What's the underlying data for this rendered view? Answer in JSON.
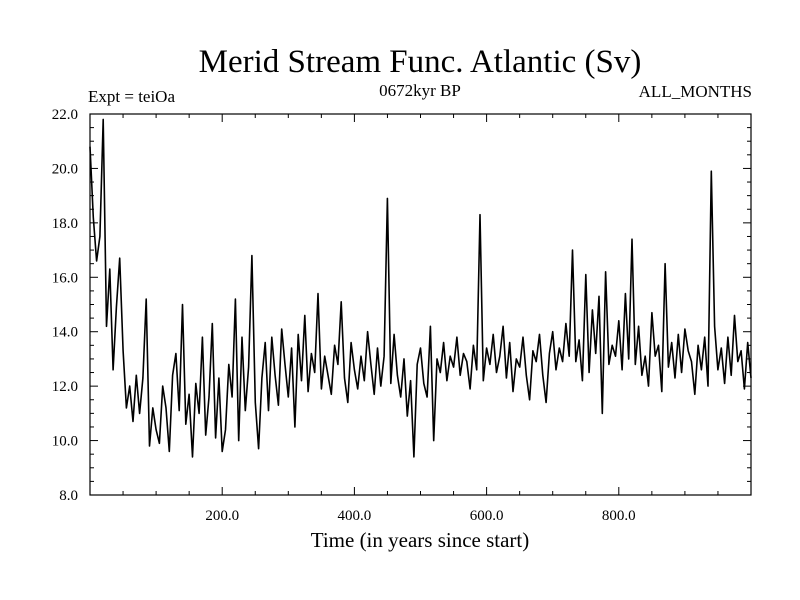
{
  "chart_data": {
    "type": "line",
    "title": "Merid Stream Func. Atlantic (Sv)",
    "subtitle_left": "Expt = teiOa",
    "subtitle_center": "0672kyr BP",
    "subtitle_right": "ALL_MONTHS",
    "xlabel": "Time (in years since start)",
    "ylabel": "",
    "xlim": [
      0,
      1000
    ],
    "ylim": [
      8.0,
      22.0
    ],
    "x_ticks": [
      200,
      400,
      600,
      800
    ],
    "x_tick_labels": [
      "200.0",
      "400.0",
      "600.0",
      "800.0"
    ],
    "y_ticks": [
      8,
      10,
      12,
      14,
      16,
      18,
      20,
      22
    ],
    "y_tick_labels": [
      "8.0",
      "10.0",
      "12.0",
      "14.0",
      "16.0",
      "18.0",
      "20.0",
      "22.0"
    ],
    "grid": false,
    "series": [
      {
        "name": "Merid Stream Func. Atlantic",
        "x": [
          0,
          5,
          10,
          15,
          20,
          25,
          30,
          35,
          40,
          45,
          50,
          55,
          60,
          65,
          70,
          75,
          80,
          85,
          90,
          95,
          100,
          105,
          110,
          115,
          120,
          125,
          130,
          135,
          140,
          145,
          150,
          155,
          160,
          165,
          170,
          175,
          180,
          185,
          190,
          195,
          200,
          205,
          210,
          215,
          220,
          225,
          230,
          235,
          240,
          245,
          250,
          255,
          260,
          265,
          270,
          275,
          280,
          285,
          290,
          295,
          300,
          305,
          310,
          315,
          320,
          325,
          330,
          335,
          340,
          345,
          350,
          355,
          360,
          365,
          370,
          375,
          380,
          385,
          390,
          395,
          400,
          405,
          410,
          415,
          420,
          425,
          430,
          435,
          440,
          445,
          450,
          455,
          460,
          465,
          470,
          475,
          480,
          485,
          490,
          495,
          500,
          505,
          510,
          515,
          520,
          525,
          530,
          535,
          540,
          545,
          550,
          555,
          560,
          565,
          570,
          575,
          580,
          585,
          590,
          595,
          600,
          605,
          610,
          615,
          620,
          625,
          630,
          635,
          640,
          645,
          650,
          655,
          660,
          665,
          670,
          675,
          680,
          685,
          690,
          695,
          700,
          705,
          710,
          715,
          720,
          725,
          730,
          735,
          740,
          745,
          750,
          755,
          760,
          765,
          770,
          775,
          780,
          785,
          790,
          795,
          800,
          805,
          810,
          815,
          820,
          825,
          830,
          835,
          840,
          845,
          850,
          855,
          860,
          865,
          870,
          875,
          880,
          885,
          890,
          895,
          900,
          905,
          910,
          915,
          920,
          925,
          930,
          935,
          940,
          945,
          950,
          955,
          960,
          965,
          970,
          975,
          980,
          985,
          990,
          995,
          1000
        ],
        "values": [
          20.8,
          18.2,
          16.6,
          17.5,
          21.8,
          14.2,
          16.3,
          12.6,
          14.9,
          16.7,
          13.3,
          11.2,
          12.0,
          10.7,
          12.4,
          11.0,
          12.3,
          15.2,
          9.8,
          11.2,
          10.4,
          9.9,
          12.0,
          11.2,
          9.6,
          12.4,
          13.2,
          11.1,
          15.0,
          10.6,
          11.7,
          9.4,
          12.1,
          11.0,
          13.8,
          10.2,
          11.6,
          14.3,
          10.1,
          12.3,
          9.6,
          10.4,
          12.8,
          11.6,
          15.2,
          10.0,
          13.8,
          11.1,
          12.7,
          16.8,
          11.4,
          9.7,
          12.3,
          13.6,
          11.1,
          13.8,
          12.4,
          11.3,
          14.1,
          12.8,
          11.6,
          13.4,
          10.5,
          13.9,
          12.2,
          14.6,
          11.8,
          13.2,
          12.5,
          15.4,
          11.9,
          13.1,
          12.4,
          11.7,
          13.5,
          12.8,
          15.1,
          12.3,
          11.4,
          13.6,
          12.6,
          11.9,
          13.1,
          12.2,
          14.0,
          12.8,
          11.7,
          13.4,
          12.0,
          13.1,
          18.9,
          12.1,
          13.9,
          12.4,
          11.6,
          13.0,
          10.9,
          12.2,
          9.4,
          12.8,
          13.4,
          12.1,
          11.6,
          14.2,
          10.0,
          13.0,
          12.5,
          13.6,
          12.2,
          13.1,
          12.7,
          13.8,
          12.4,
          13.2,
          12.9,
          11.9,
          13.5,
          12.6,
          18.3,
          12.2,
          13.4,
          12.8,
          13.9,
          12.5,
          13.1,
          14.2,
          12.3,
          13.6,
          11.8,
          13.0,
          12.7,
          13.8,
          12.4,
          11.5,
          13.3,
          12.9,
          13.9,
          12.4,
          11.4,
          13.2,
          14.0,
          12.6,
          13.4,
          12.9,
          14.3,
          13.1,
          17.0,
          12.9,
          13.7,
          12.2,
          16.1,
          12.5,
          14.8,
          13.2,
          15.3,
          11.0,
          16.2,
          12.8,
          13.5,
          13.1,
          14.4,
          12.6,
          15.4,
          13.0,
          17.4,
          12.8,
          14.2,
          12.4,
          13.1,
          12.0,
          14.7,
          13.1,
          13.5,
          11.8,
          16.5,
          12.7,
          13.6,
          12.3,
          13.9,
          12.5,
          14.1,
          13.3,
          12.9,
          11.7,
          13.5,
          12.6,
          13.8,
          12.0,
          19.9,
          14.2,
          12.6,
          13.4,
          12.1,
          13.8,
          12.4,
          14.6,
          12.9,
          13.3,
          11.9,
          13.6,
          12.3
        ]
      }
    ]
  }
}
